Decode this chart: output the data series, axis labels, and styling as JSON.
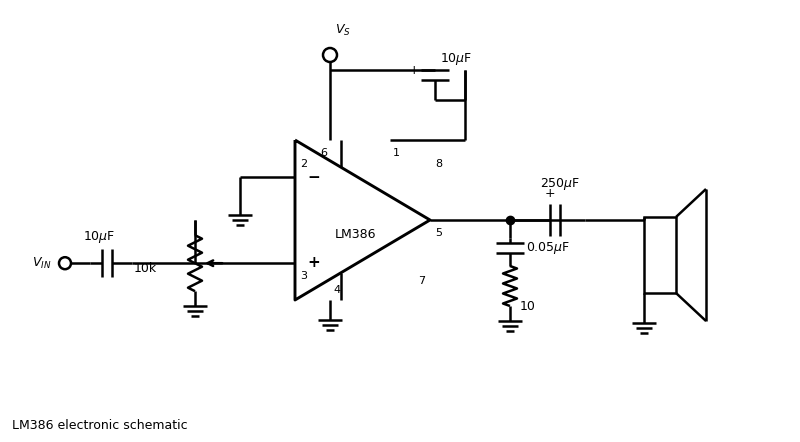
{
  "title": "LM386 electronic schematic",
  "bg_color": "#ffffff",
  "line_color": "#000000",
  "figsize": [
    8.0,
    4.42
  ],
  "dpi": 100,
  "subtitle": "LM386 electronic schematic"
}
